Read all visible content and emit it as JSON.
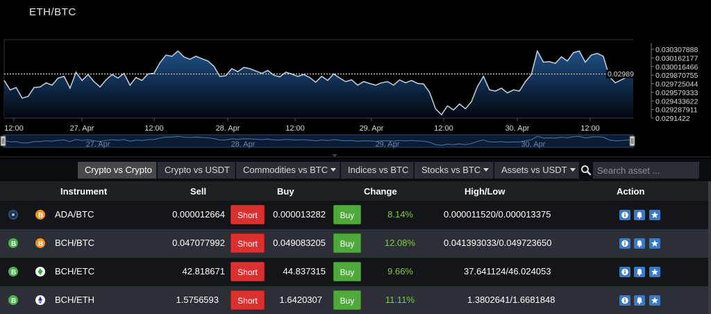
{
  "chart": {
    "title": "ETH/BTC",
    "current_price": "0.02989",
    "x_tick_labels": [
      "12:00",
      "27. Apr",
      "12:00",
      "28. Apr",
      "12:00",
      "29. Apr",
      "12:00",
      "30. Apr",
      "12:00"
    ],
    "navigator_labels": [
      "27. Apr",
      "28. Apr",
      "29. Apr",
      "30. Apr"
    ],
    "y_tick_labels": [
      "0.030307888",
      "0.030162177",
      "0.030016466",
      "0.029870755",
      "0.029725044",
      "0.029579333",
      "0.029433622",
      "0.029287911",
      "0.0291422"
    ],
    "colors": {
      "line": "#c9d3e0",
      "fill_top": "#1e4f86",
      "fill_bottom": "#02070f",
      "background": "#000000"
    }
  },
  "chart_data": {
    "type": "area",
    "title": "ETH/BTC",
    "y_ticks": [
      0.030307888,
      0.030162177,
      0.030016466,
      0.029870755,
      0.029725044,
      0.029579333,
      0.029433622,
      0.029287911,
      0.0291422
    ],
    "ylim": [
      0.0291422,
      0.030307888
    ],
    "grid": false,
    "current_value": 0.02989,
    "series": [
      {
        "values": [
          0.02978,
          0.02962,
          0.02966,
          0.02948,
          0.02951,
          0.02966,
          0.02967,
          0.02974,
          0.0297,
          0.02982,
          0.02985,
          0.02965,
          0.02992,
          0.02978,
          0.02988,
          0.02976,
          0.02967,
          0.02979,
          0.02988,
          0.02982,
          0.0299,
          0.0297,
          0.02983,
          0.02978,
          0.02989,
          0.0299,
          0.03008,
          0.03021,
          0.03019,
          0.03028,
          0.03018,
          0.03014,
          0.03019,
          0.03015,
          0.03011,
          0.03002,
          0.02985,
          0.02986,
          0.02998,
          0.02993,
          0.03,
          0.02998,
          0.02994,
          0.0299,
          0.02995,
          0.02987,
          0.02984,
          0.02992,
          0.02989,
          0.02985,
          0.02988,
          0.02983,
          0.02975,
          0.02985,
          0.02978,
          0.02989,
          0.02982,
          0.02976,
          0.02979,
          0.0297,
          0.02976,
          0.02973,
          0.0297,
          0.02974,
          0.02976,
          0.0297,
          0.02979,
          0.02974,
          0.02978,
          0.02973,
          0.02972,
          0.02958,
          0.0293,
          0.0292,
          0.02935,
          0.02928,
          0.02938,
          0.0293,
          0.02942,
          0.02968,
          0.02985,
          0.02962,
          0.0296,
          0.02965,
          0.02957,
          0.02962,
          0.0296,
          0.02976,
          0.02988,
          0.03028,
          0.03009,
          0.0301,
          0.03007,
          0.03018,
          0.03011,
          0.03025,
          0.03028,
          0.03009,
          0.03021,
          0.03024,
          0.03019,
          0.02985,
          0.02974,
          0.02979,
          0.02984,
          0.02989
        ]
      }
    ]
  },
  "tabs": [
    {
      "label": "Crypto vs Crypto",
      "dropdown": false
    },
    {
      "label": "Crypto vs USDT",
      "dropdown": false
    },
    {
      "label": "Commodities vs BTC",
      "dropdown": true
    },
    {
      "label": "Indices vs BTC",
      "dropdown": false
    },
    {
      "label": "Stocks vs BTC",
      "dropdown": true
    },
    {
      "label": "Assets vs USDT",
      "dropdown": true
    }
  ],
  "search": {
    "placeholder": "Search asset ...",
    "icon": "search-icon"
  },
  "table": {
    "headers": {
      "instrument": "Instrument",
      "sell": "Sell",
      "buy": "Buy",
      "change": "Change",
      "high_low": "High/Low",
      "action": "Action"
    },
    "short_label": "Short",
    "buy_label": "Buy",
    "rows": [
      {
        "instrument": "ADA/BTC",
        "sell": "0.000012664",
        "buy": "0.000013282",
        "change": "8.14%",
        "high_low": "0.000011520/0.000013375",
        "icon1": "ada-coin-icon",
        "icon2": "bitcoin-icon"
      },
      {
        "instrument": "BCH/BTC",
        "sell": "0.047077992",
        "buy": "0.049083205",
        "change": "12.08%",
        "high_low": "0.041393033/0.049723650",
        "icon1": "bitcoin-cash-icon",
        "icon2": "bitcoin-icon"
      },
      {
        "instrument": "BCH/ETC",
        "sell": "42.818671",
        "buy": "44.837315",
        "change": "9.66%",
        "high_low": "37.641124/46.024053",
        "icon1": "bitcoin-cash-icon",
        "icon2": "ethereum-classic-icon"
      },
      {
        "instrument": "BCH/ETH",
        "sell": "1.5756593",
        "buy": "1.6420307",
        "change": "11.11%",
        "high_low": "1.3802641/1.6681848",
        "icon1": "bitcoin-cash-icon",
        "icon2": "ethereum-icon"
      }
    ]
  }
}
